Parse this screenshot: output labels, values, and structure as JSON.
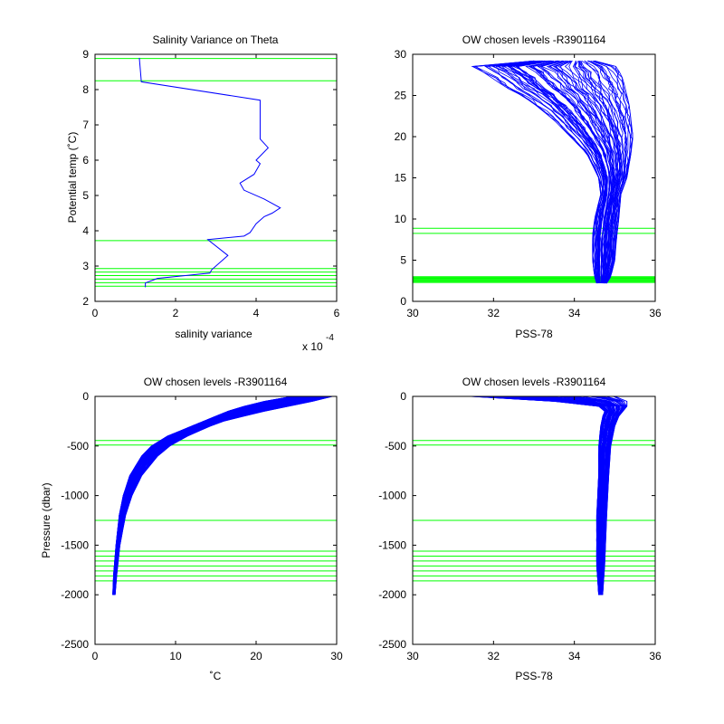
{
  "chart_data": [
    {
      "type": "line",
      "title": "Salinity Variance on Theta",
      "xlabel": "salinity variance",
      "ylabel": "Potential temp (˚C)",
      "xlim": [
        0,
        6
      ],
      "ylim": [
        2,
        9
      ],
      "xticks": [
        "0",
        "2",
        "4",
        "6"
      ],
      "yticks": [
        "2",
        "3",
        "4",
        "5",
        "6",
        "7",
        "8",
        "9"
      ],
      "x_multiplier": "x 10",
      "x_multiplier_exp": "-4",
      "x_scale": 0.0001,
      "green_levels": [
        8.88,
        8.25,
        3.72,
        2.93,
        2.83,
        2.73,
        2.63,
        2.53,
        2.43
      ],
      "series": [
        {
          "x": [
            1.25,
            1.25,
            1.55,
            2.85,
            2.9,
            3.3,
            2.8,
            3.7,
            3.85,
            4.0,
            4.2,
            4.4,
            4.6,
            4.2,
            3.7,
            3.6,
            3.95,
            4.1,
            4.0,
            4.3,
            4.1,
            4.1,
            1.15,
            1.1
          ],
          "y": [
            2.4,
            2.52,
            2.65,
            2.8,
            2.9,
            3.3,
            3.75,
            3.85,
            3.95,
            4.2,
            4.4,
            4.5,
            4.65,
            4.9,
            5.15,
            5.35,
            5.6,
            5.9,
            6.0,
            6.35,
            6.6,
            7.7,
            8.22,
            8.9
          ]
        }
      ]
    },
    {
      "type": "line",
      "title": "OW chosen levels -R3901164",
      "xlabel": "PSS-78",
      "ylabel": "",
      "xlim": [
        30,
        36
      ],
      "ylim": [
        0,
        30
      ],
      "xticks": [
        "30",
        "32",
        "34",
        "36"
      ],
      "yticks": [
        "0",
        "5",
        "10",
        "15",
        "20",
        "25",
        "30"
      ],
      "green_levels": [
        8.88,
        8.25,
        3.0,
        2.9,
        2.8,
        2.7,
        2.6,
        2.5,
        2.4,
        2.3
      ],
      "envelope": {
        "y": [
          2.2,
          3,
          5,
          8,
          10,
          13,
          15,
          18,
          20,
          22,
          24,
          25,
          26,
          27,
          28,
          28.7,
          29.2
        ],
        "s_min": [
          34.55,
          34.5,
          34.45,
          34.45,
          34.5,
          34.65,
          34.6,
          34.3,
          33.9,
          33.5,
          33.0,
          32.7,
          32.3,
          32.0,
          31.7,
          31.4,
          33.0
        ],
        "s_max": [
          34.8,
          34.9,
          35.0,
          35.05,
          35.1,
          35.15,
          35.3,
          35.4,
          35.45,
          35.4,
          35.35,
          35.3,
          35.25,
          35.2,
          35.1,
          35.0,
          34.5
        ]
      }
    },
    {
      "type": "line",
      "title": "OW chosen levels -R3901164",
      "xlabel": "˚C",
      "ylabel": "Pressure (dbar)",
      "xlim": [
        0,
        30
      ],
      "ylim": [
        -2500,
        0
      ],
      "xticks": [
        "0",
        "10",
        "20",
        "30"
      ],
      "yticks": [
        "-2500",
        "-2000",
        "-1500",
        "-1000",
        "-500",
        "0"
      ],
      "green_levels": [
        -445,
        -490,
        -1250,
        -1560,
        -1610,
        -1660,
        -1710,
        -1760,
        -1810,
        -1860
      ],
      "envelope": {
        "p": [
          -2000,
          -1800,
          -1500,
          -1200,
          -1000,
          -800,
          -600,
          -500,
          -400,
          -300,
          -250,
          -200,
          -150,
          -100,
          -50,
          -20,
          0
        ],
        "t_min": [
          2.2,
          2.3,
          2.6,
          3.0,
          3.5,
          4.3,
          5.8,
          7.0,
          9.0,
          12.0,
          13.5,
          15.0,
          16.5,
          18.5,
          21.0,
          23.5,
          24.5
        ],
        "t_max": [
          2.5,
          2.7,
          3.1,
          3.8,
          4.6,
          5.8,
          7.8,
          9.3,
          11.5,
          14.3,
          16.0,
          18.5,
          21.0,
          24.0,
          27.0,
          29.0,
          29.5
        ]
      }
    },
    {
      "type": "line",
      "title": "OW chosen levels -R3901164",
      "xlabel": "PSS-78",
      "ylabel": "",
      "xlim": [
        30,
        36
      ],
      "ylim": [
        -2500,
        0
      ],
      "xticks": [
        "30",
        "32",
        "34",
        "36"
      ],
      "yticks": [
        "-2500",
        "-2000",
        "-1500",
        "-1000",
        "-500",
        "0"
      ],
      "green_levels": [
        -445,
        -490,
        -1250,
        -1560,
        -1610,
        -1660,
        -1710,
        -1760,
        -1810,
        -1860
      ],
      "envelope": {
        "p": [
          -2000,
          -1700,
          -1200,
          -800,
          -500,
          -300,
          -200,
          -150,
          -100,
          -50,
          -20,
          0
        ],
        "s_min": [
          34.6,
          34.55,
          34.55,
          34.6,
          34.6,
          34.65,
          34.7,
          34.75,
          34.6,
          33.5,
          32.0,
          31.4
        ],
        "s_max": [
          34.7,
          34.75,
          34.8,
          34.85,
          34.9,
          35.0,
          35.1,
          35.2,
          35.3,
          35.3,
          35.2,
          35.0
        ]
      }
    }
  ]
}
